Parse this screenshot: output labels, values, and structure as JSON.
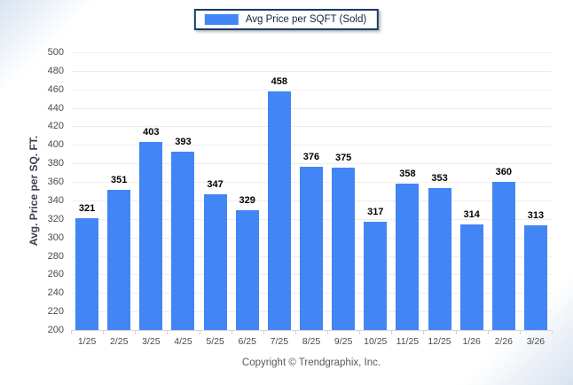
{
  "legend": {
    "label": "Avg Price per SQFT (Sold)",
    "swatch_color": "#4285f4",
    "border_color": "#1b3a66"
  },
  "footer": {
    "copyright": "Copyright © Trendgraphix, Inc."
  },
  "chart_data": {
    "type": "bar",
    "title": "",
    "xlabel": "",
    "ylabel": "Avg. Price per SQ. FT.",
    "categories": [
      "1/25",
      "2/25",
      "3/25",
      "4/25",
      "5/25",
      "6/25",
      "7/25",
      "8/25",
      "9/25",
      "10/25",
      "11/25",
      "12/25",
      "1/26",
      "2/26",
      "3/26"
    ],
    "series": [
      {
        "name": "Avg Price per SQFT (Sold)",
        "values": [
          321,
          351,
          403,
          393,
          347,
          329,
          458,
          376,
          375,
          317,
          358,
          353,
          314,
          360,
          313
        ]
      }
    ],
    "ylim": [
      200,
      500
    ],
    "ytick_step": 20,
    "grid": "horizontal",
    "legend_position": "top-center",
    "bar_color": "#4285f4",
    "gridline_color": "#f0eded",
    "axis_line_color": "#d5d5d5"
  }
}
